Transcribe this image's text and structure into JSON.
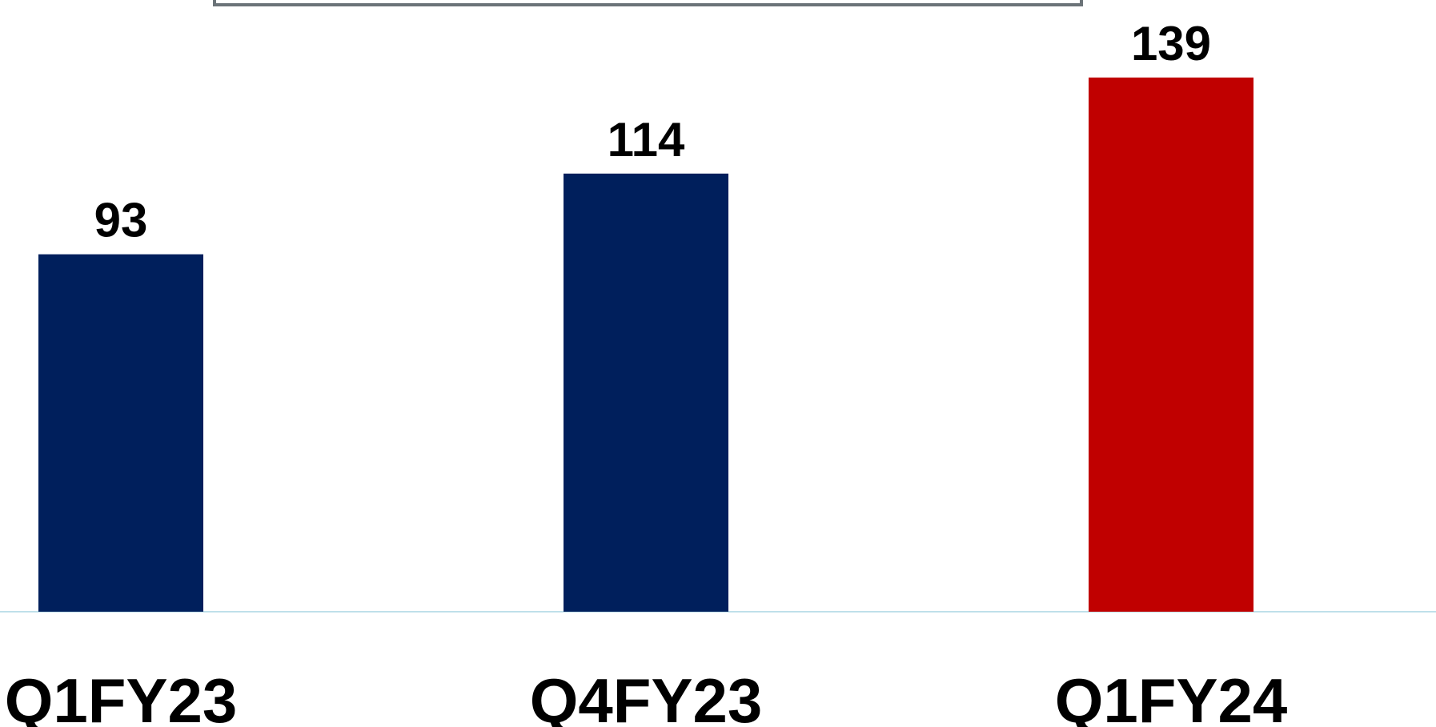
{
  "chart_data": {
    "type": "bar",
    "categories": [
      "Q1FY23",
      "Q4FY23",
      "Q1FY24"
    ],
    "values": [
      93,
      114,
      139
    ],
    "colors": [
      "#001f5c",
      "#001f5c",
      "#c00000"
    ]
  }
}
